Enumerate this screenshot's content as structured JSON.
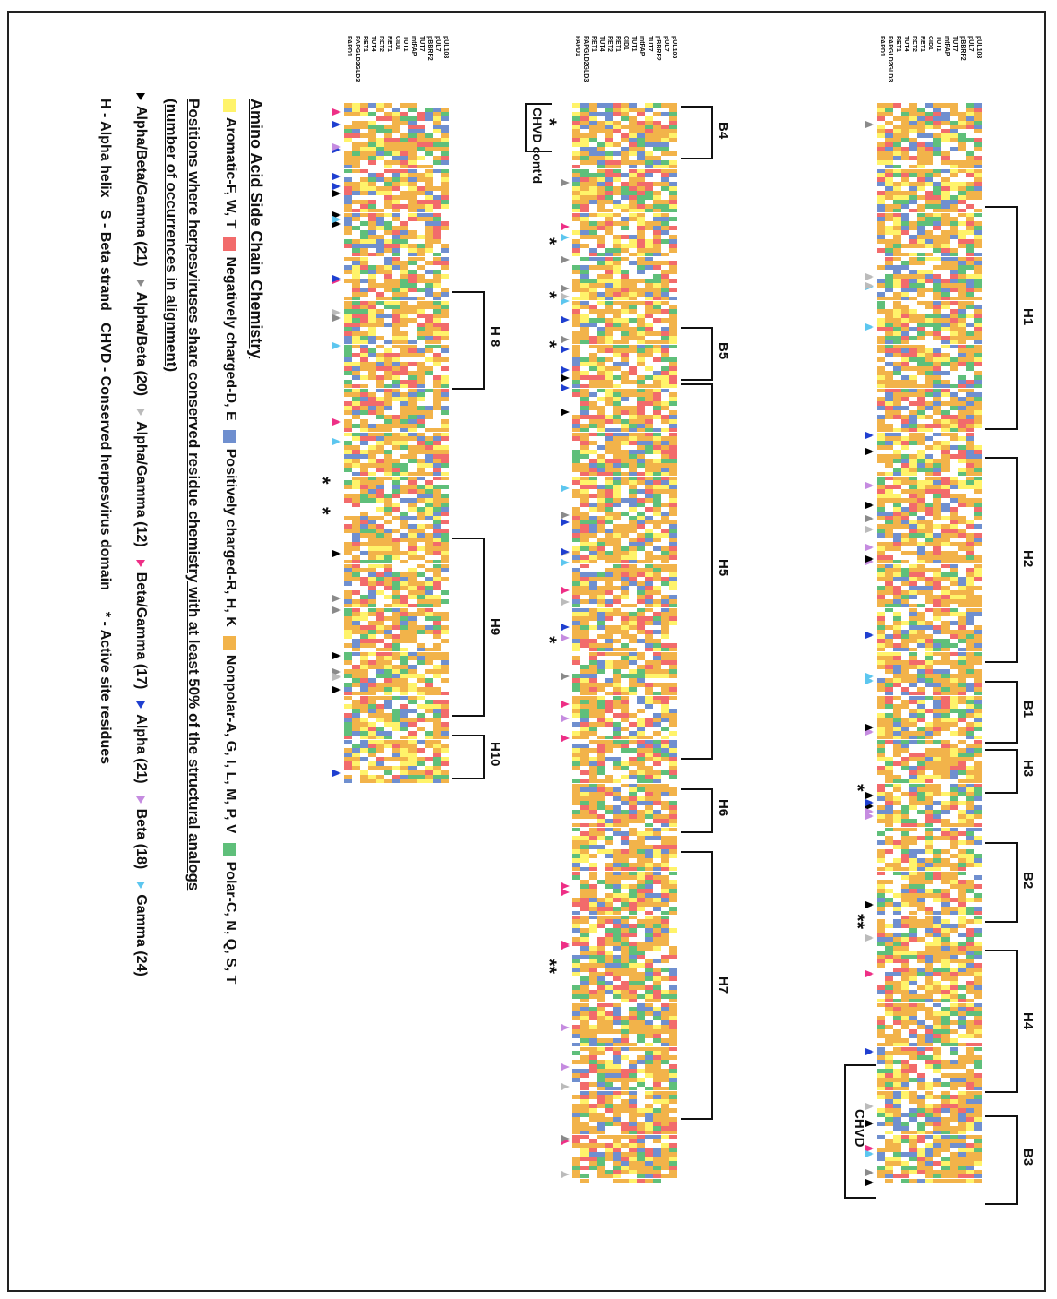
{
  "sequence_names": [
    "pUL103",
    "pUL7",
    "pBBRF2",
    "TUT7",
    "mtPAP",
    "TUT1",
    "CID1",
    "RET1",
    "RET2",
    "TUT4",
    "RET1",
    "PAPGLD2GLD3",
    "PAPD1"
  ],
  "element_labels": {
    "block1": [
      "H1",
      "H2",
      "B1",
      "H3",
      "B2",
      "H4",
      "B3"
    ],
    "block1_extra": "CHVD",
    "block2": [
      "B4",
      "B5",
      "H5",
      "H6",
      "H7"
    ],
    "block2_extra": "CHVD cont'd",
    "block3": [
      "H 8",
      "H9",
      "H10"
    ]
  },
  "legend": {
    "title": "Amino Acid Side Chain Chemistry",
    "chemistry": [
      {
        "label": "Aromatic-F, W, T",
        "color": "#fff36a"
      },
      {
        "label": "Negatively charged-D, E",
        "color": "#f26b6b"
      },
      {
        "label": "Positively charged-R, H, K",
        "color": "#6f8fcf"
      },
      {
        "label": "Nonpolar-A, G, I, L, M, P, V",
        "color": "#f2b34a"
      },
      {
        "label": "Polar-C, N, Q, S, T",
        "color": "#5fbf7a"
      }
    ],
    "positions_title": "Positions where herpesviruses share conserved residue chemistry with at least 50% of the structural analogs",
    "positions_subtitle": "(number of occurrences in alignment)",
    "markers": [
      {
        "label": "Alpha/Beta/Gamma (21)",
        "color": "#000000"
      },
      {
        "label": "Alpha/Beta (20)",
        "color": "#8a8a8a"
      },
      {
        "label": "Alpha/Gamma (12)",
        "color": "#bbbbbb"
      },
      {
        "label": "Beta/Gamma (17)",
        "color": "#ee2f86"
      },
      {
        "label": "Alpha (21)",
        "color": "#1f3fd0"
      },
      {
        "label": "Beta (18)",
        "color": "#c58be0"
      },
      {
        "label": "Gamma (24)",
        "color": "#5cc6ef"
      }
    ],
    "abbreviations": "H - Alpha helix   S - Beta strand   CHVD - Conserved herpesvirus domain",
    "asterisk_note": "* - Active site residues"
  }
}
